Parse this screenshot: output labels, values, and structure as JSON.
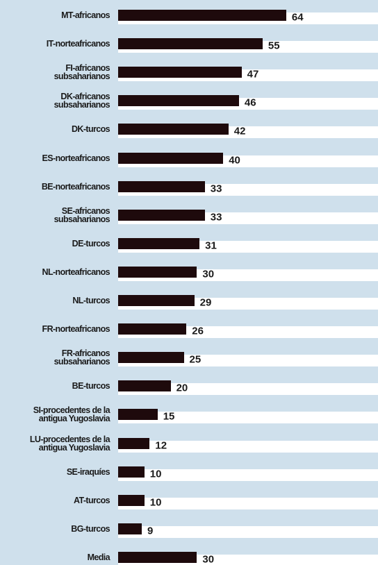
{
  "chart_data": {
    "type": "bar",
    "orientation": "horizontal",
    "categories": [
      "MT-africanos",
      "IT-norteafricanos",
      "FI-africanos\nsubsaharianos",
      "DK-africanos\nsubsaharianos",
      "DK-turcos",
      "ES-norteafricanos",
      "BE-norteafricanos",
      "SE-africanos\nsubsaharianos",
      "DE-turcos",
      "NL-norteafricanos",
      "NL-turcos",
      "FR-norteafricanos",
      "FR-africanos\nsubsaharianos",
      "BE-turcos",
      "SI-procedentes de la\nantigua Yugoslavia",
      "LU-procedentes de la\nantigua Yugoslavia",
      "SE-iraquíes",
      "AT-turcos",
      "BG-turcos",
      "Media"
    ],
    "values": [
      64,
      55,
      47,
      46,
      42,
      40,
      33,
      33,
      31,
      30,
      29,
      26,
      25,
      20,
      15,
      12,
      10,
      10,
      9,
      30
    ],
    "color": "#1e0a0c"
  }
}
